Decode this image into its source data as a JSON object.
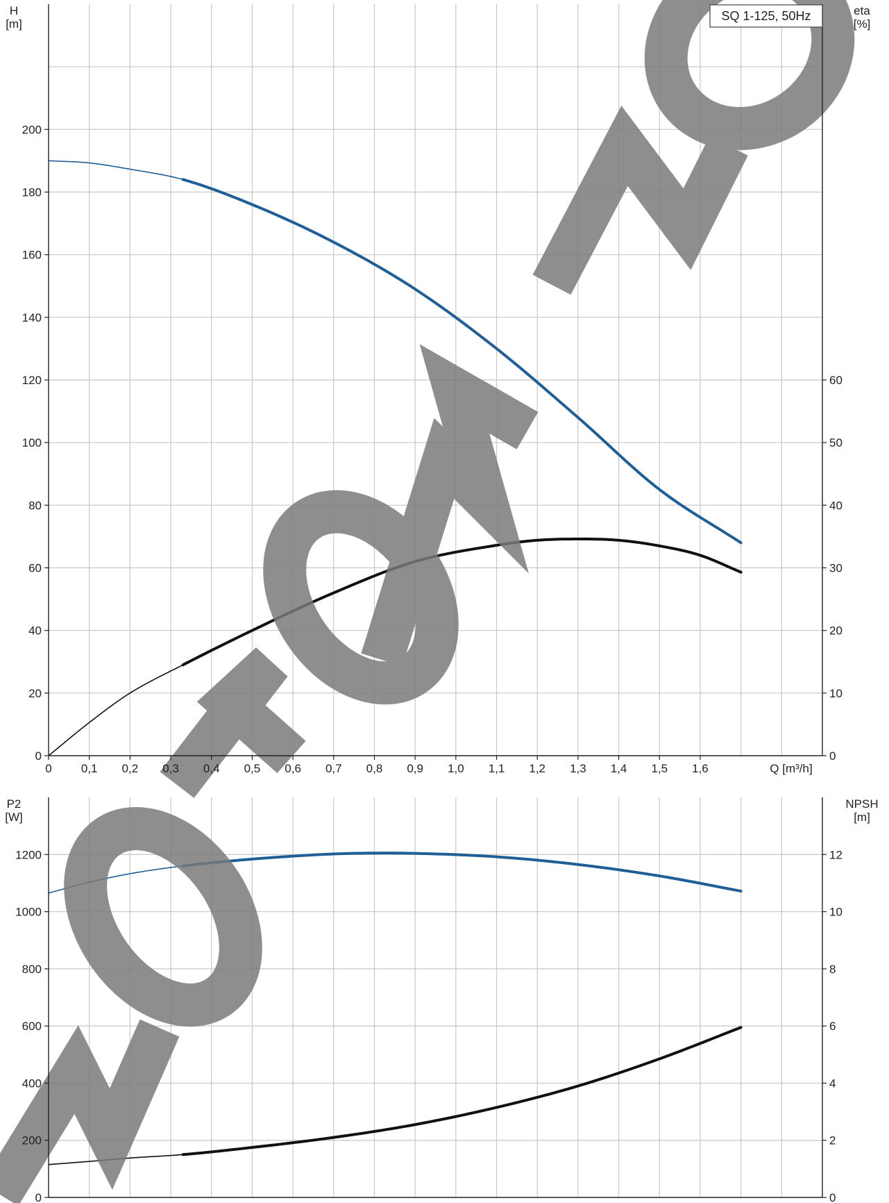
{
  "legend_label": "SQ 1-125, 50Hz",
  "colors": {
    "blue": "#1f5f96",
    "black": "#111111",
    "grid": "#c8c8c8",
    "watermark": "#7a7a7a"
  },
  "chart_data": [
    {
      "type": "line",
      "panel": "top",
      "x_label": "Q [m³/h]",
      "xlim": [
        0,
        1.9
      ],
      "x_ticks": [
        "0",
        "0,1",
        "0,2",
        "0,3",
        "0,4",
        "0,5",
        "0,6",
        "0,7",
        "0,8",
        "0,9",
        "1,0",
        "1,1",
        "1,2",
        "1,3",
        "1,4",
        "1,5",
        "1,6"
      ],
      "left_axis": {
        "label_top": "H",
        "label_unit": "[m]",
        "ylim": [
          0,
          240
        ],
        "ticks": [
          "0",
          "20",
          "40",
          "60",
          "80",
          "100",
          "120",
          "140",
          "160",
          "180",
          "200"
        ]
      },
      "right_axis": {
        "label_top": "eta",
        "label_unit": "[%]",
        "ylim": [
          0,
          120
        ],
        "ticks": [
          "0",
          "10",
          "20",
          "30",
          "40",
          "50",
          "60"
        ]
      },
      "series": [
        {
          "axis": "left",
          "color": "#1f5f96",
          "x": [
            0,
            0.1,
            0.2,
            0.33,
            0.5,
            0.7,
            0.9,
            1.1,
            1.3,
            1.5,
            1.7
          ],
          "y": [
            190,
            189.3,
            187.3,
            184,
            176,
            164,
            149,
            130,
            108,
            85,
            68
          ],
          "x_thin_end": 0.33
        },
        {
          "axis": "right",
          "color": "#111111",
          "x": [
            0,
            0.1,
            0.2,
            0.33,
            0.5,
            0.7,
            0.9,
            1.1,
            1.2,
            1.3,
            1.4,
            1.5,
            1.6,
            1.7
          ],
          "y": [
            0,
            5.3,
            10,
            14.5,
            20,
            26,
            31,
            33.6,
            34.4,
            34.6,
            34.4,
            33.5,
            32,
            29.3
          ],
          "x_thin_end": 0.33
        }
      ]
    },
    {
      "type": "line",
      "panel": "bottom",
      "xlim": [
        0,
        1.9
      ],
      "left_axis": {
        "label_top": "P2",
        "label_unit": "[W]",
        "ylim": [
          0,
          1400
        ],
        "ticks": [
          "0",
          "200",
          "400",
          "600",
          "800",
          "1000",
          "1200"
        ]
      },
      "right_axis": {
        "label_top": "NPSH",
        "label_unit": "[m]",
        "ylim": [
          0,
          14
        ],
        "ticks": [
          "0",
          "2",
          "4",
          "6",
          "8",
          "10",
          "12"
        ]
      },
      "series": [
        {
          "axis": "left",
          "color": "#1f5f96",
          "x": [
            0,
            0.1,
            0.2,
            0.33,
            0.5,
            0.7,
            0.8,
            0.9,
            1.1,
            1.3,
            1.5,
            1.7
          ],
          "y": [
            1065,
            1103,
            1133,
            1160,
            1184,
            1202,
            1205,
            1204,
            1192,
            1165,
            1125,
            1072
          ],
          "x_thin_end": 0.33
        },
        {
          "axis": "right",
          "color": "#111111",
          "x": [
            0,
            0.1,
            0.2,
            0.33,
            0.5,
            0.7,
            0.9,
            1.1,
            1.3,
            1.5,
            1.7
          ],
          "y": [
            1.15,
            1.26,
            1.38,
            1.5,
            1.75,
            2.1,
            2.55,
            3.15,
            3.9,
            4.85,
            5.95
          ],
          "x_thin_end": 0.33
        }
      ]
    }
  ]
}
